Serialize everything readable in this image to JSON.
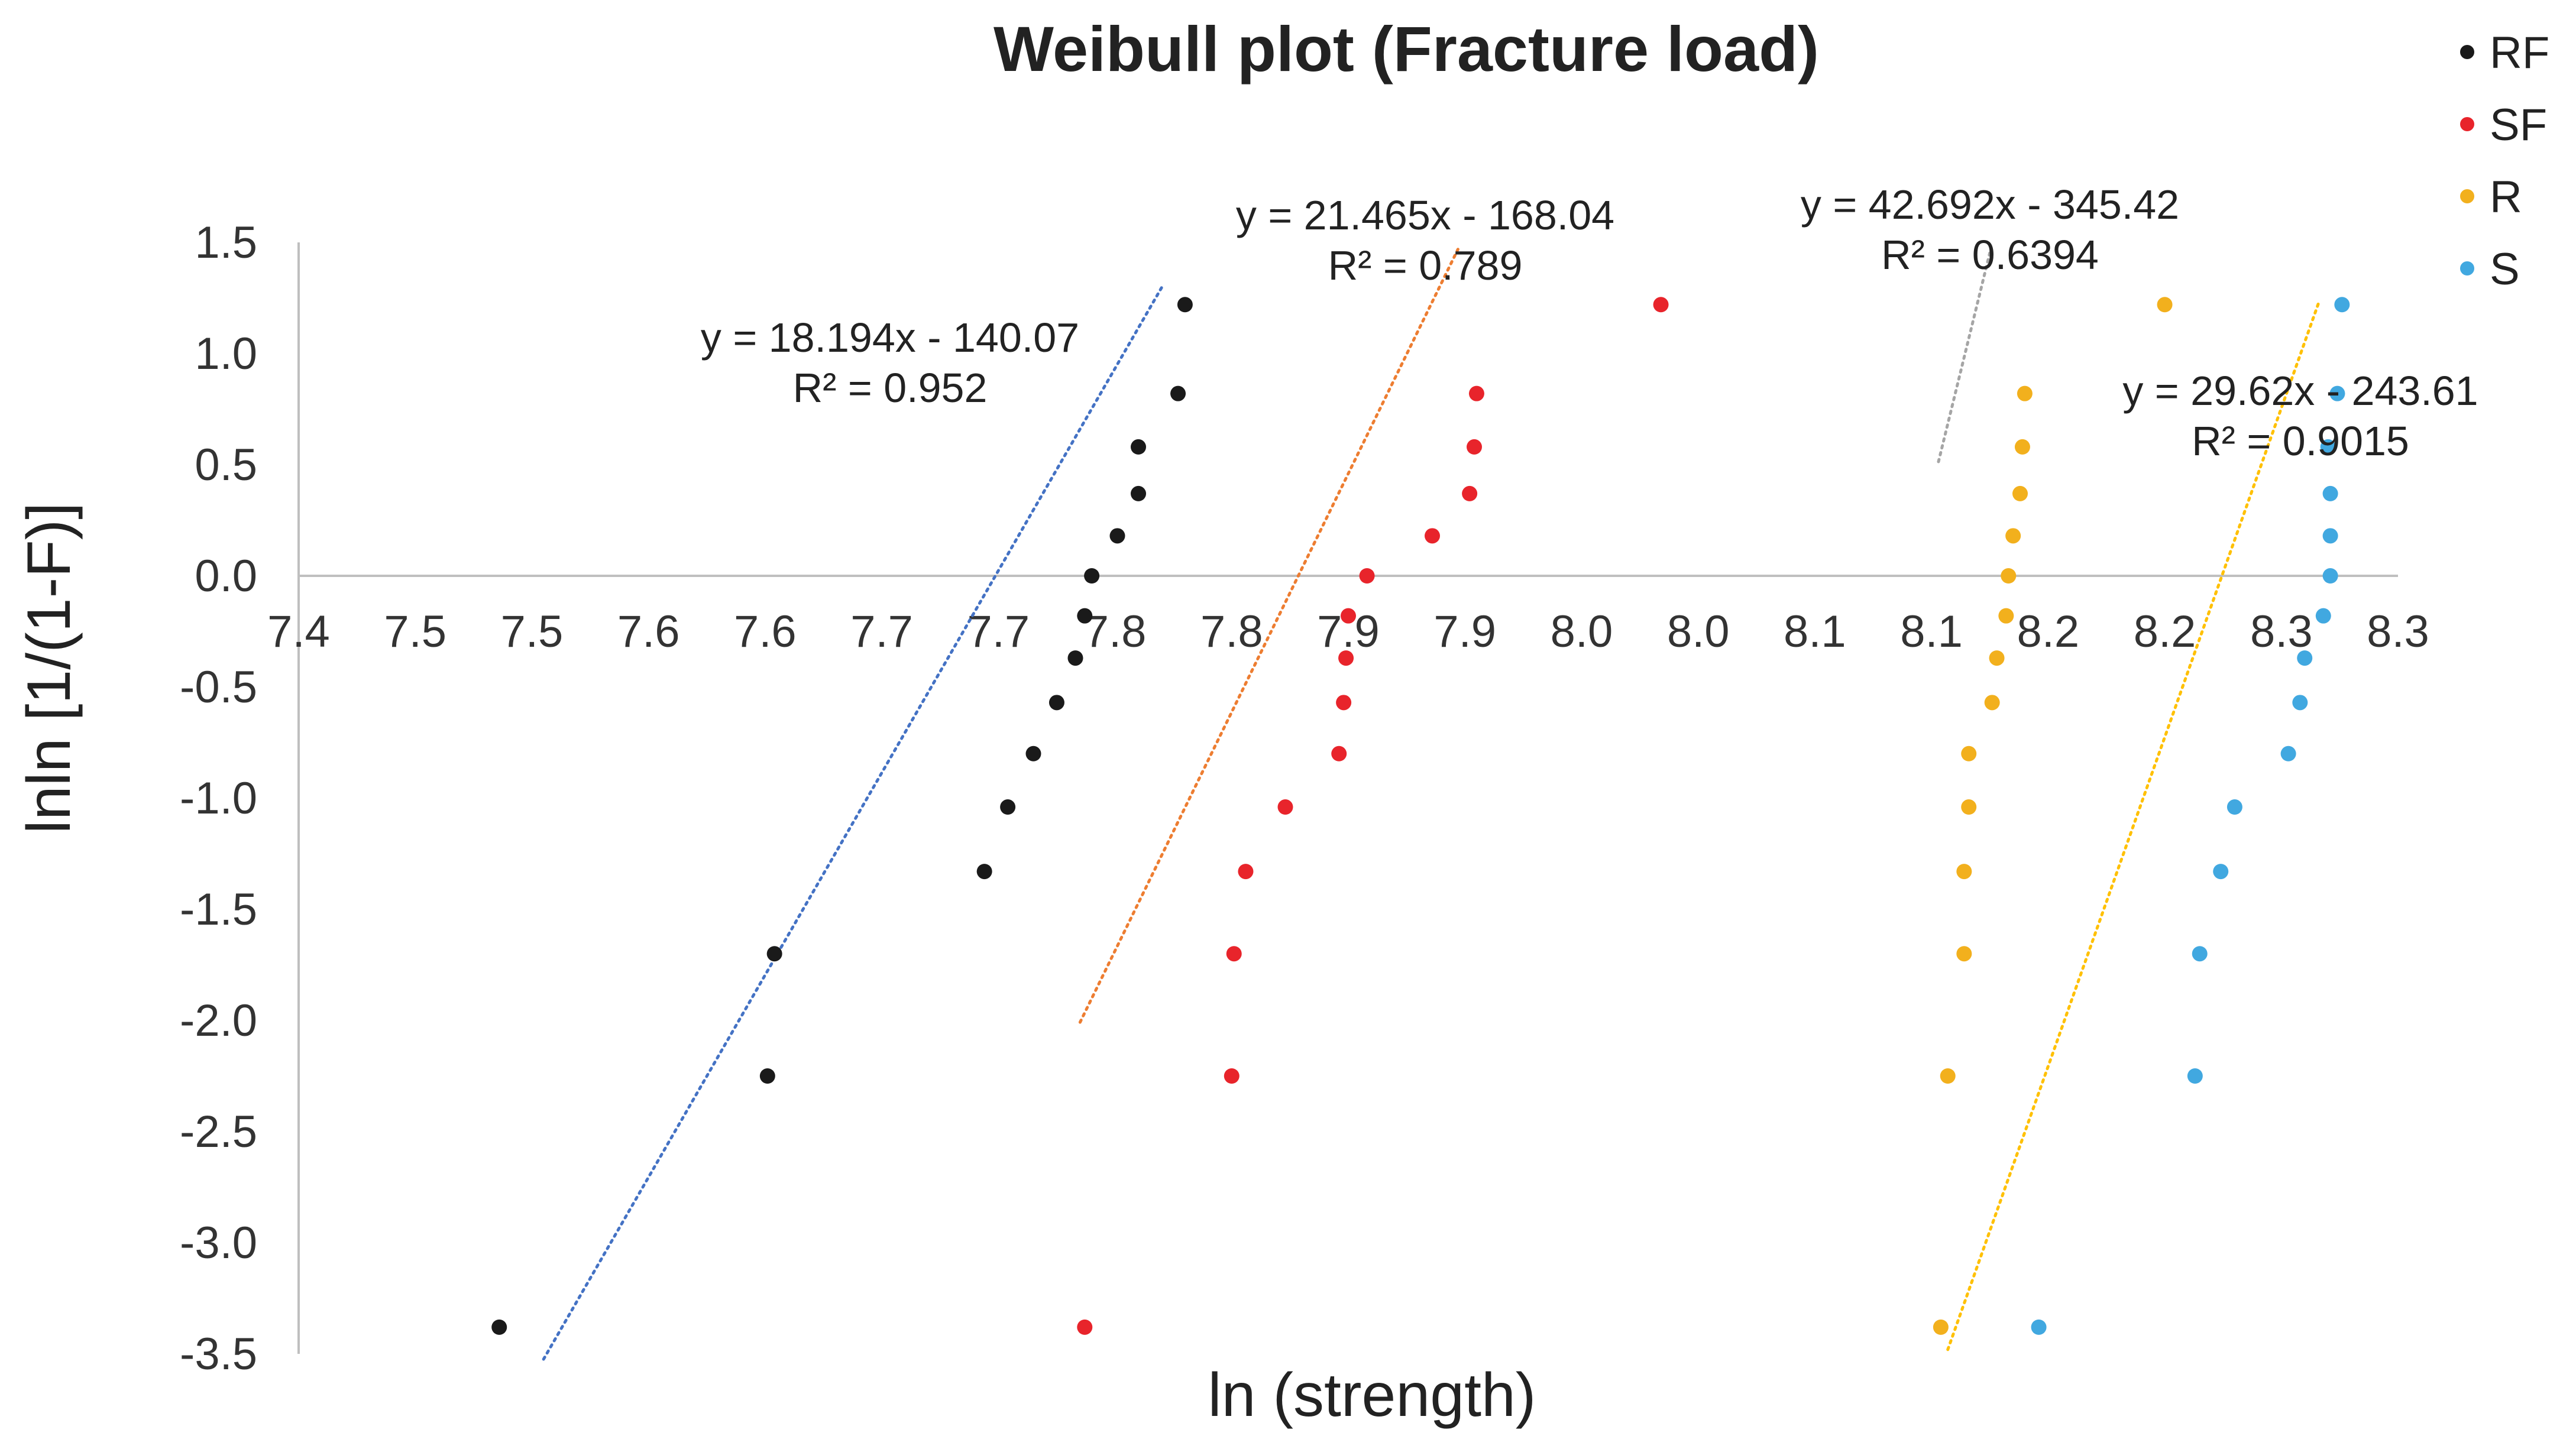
{
  "chart_data": {
    "type": "scatter",
    "title": "Weibull plot (Fracture load)",
    "xlabel": "ln (strength)",
    "ylabel": "lnln [1/(1-F)]",
    "xlim": [
      7.4,
      8.3
    ],
    "ylim": [
      -3.5,
      1.5
    ],
    "x_tick_labels": [
      "7.4",
      "7.5",
      "7.5",
      "7.6",
      "7.6",
      "7.7",
      "7.7",
      "7.8",
      "7.8",
      "7.9",
      "7.9",
      "8.0",
      "8.0",
      "8.1",
      "8.1",
      "8.2",
      "8.2",
      "8.3",
      "8.3"
    ],
    "y_tick_labels": [
      "1.5",
      "1.0",
      "0.5",
      "0.0",
      "-0.5",
      "-1.0",
      "-1.5",
      "-2.0",
      "-2.5",
      "-3.0",
      "-3.5"
    ],
    "grid": false,
    "legend_position": "top-right",
    "series": [
      {
        "name": "RF",
        "color": "#1a1a1a",
        "x": [
          7.486,
          7.601,
          7.604,
          7.694,
          7.704,
          7.715,
          7.725,
          7.733,
          7.737,
          7.74,
          7.751,
          7.76,
          7.76,
          7.777,
          7.78
        ],
        "y": [
          -3.38,
          -2.25,
          -1.7,
          -1.33,
          -1.04,
          -0.8,
          -0.57,
          -0.37,
          -0.18,
          0.0,
          0.18,
          0.37,
          0.58,
          0.82,
          1.22
        ],
        "trendline": {
          "slope": 18.194,
          "intercept": -140.07,
          "equation": "y = 18.194x - 140.07",
          "r2": "R² = 0.952",
          "x_range": [
            7.505,
            7.77
          ]
        }
      },
      {
        "name": "SF",
        "color": "#e8242b",
        "x": [
          7.737,
          7.8,
          7.801,
          7.806,
          7.823,
          7.846,
          7.848,
          7.849,
          7.85,
          7.858,
          7.886,
          7.902,
          7.904,
          7.905,
          7.984
        ],
        "y": [
          -3.38,
          -2.25,
          -1.7,
          -1.33,
          -1.04,
          -0.8,
          -0.57,
          -0.37,
          -0.18,
          0.0,
          0.18,
          0.37,
          0.58,
          0.82,
          1.22
        ],
        "trendline": {
          "slope": 21.465,
          "intercept": -168.04,
          "equation": "y = 21.465x - 168.04",
          "r2": "R² = 0.789",
          "x_range": [
            7.735,
            7.897
          ]
        }
      },
      {
        "name": "R",
        "color": "#f2b01d",
        "x": [
          8.104,
          8.107,
          8.114,
          8.114,
          8.116,
          8.116,
          8.126,
          8.128,
          8.132,
          8.133,
          8.135,
          8.138,
          8.139,
          8.14,
          8.2
        ],
        "y": [
          -3.38,
          -2.25,
          -1.7,
          -1.33,
          -1.04,
          -0.8,
          -0.57,
          -0.37,
          -0.18,
          0.0,
          0.18,
          0.37,
          0.58,
          0.82,
          1.22
        ],
        "trendline": {
          "slope": 42.692,
          "intercept": -345.42,
          "equation": "y = 42.692x - 345.42",
          "r2": "R² = 0.6394",
          "x_range": [
            8.103,
            8.125
          ]
        }
      },
      {
        "name": "S",
        "color": "#41a8e0",
        "x": [
          8.146,
          8.213,
          8.215,
          8.224,
          8.23,
          8.253,
          8.258,
          8.26,
          8.268,
          8.271,
          8.271,
          8.271,
          8.27,
          8.274,
          8.276
        ],
        "y": [
          -3.38,
          -2.25,
          -1.7,
          -1.33,
          -1.04,
          -0.8,
          -0.57,
          -0.37,
          -0.18,
          0.0,
          0.18,
          0.37,
          0.58,
          0.82,
          1.22
        ],
        "trendline": {
          "slope": 29.62,
          "intercept": -243.61,
          "equation": "y = 29.62x - 243.61",
          "r2": "R² = 0.9015",
          "x_range": [
            8.107,
            8.266
          ]
        }
      }
    ]
  },
  "colors": {
    "rf_trendline": "#4472c4",
    "sf_trendline": "#ed7d31",
    "r_trendline": "#a5a5a5",
    "s_trendline": "#ffc000",
    "axis_line": "#bfbfbf"
  }
}
